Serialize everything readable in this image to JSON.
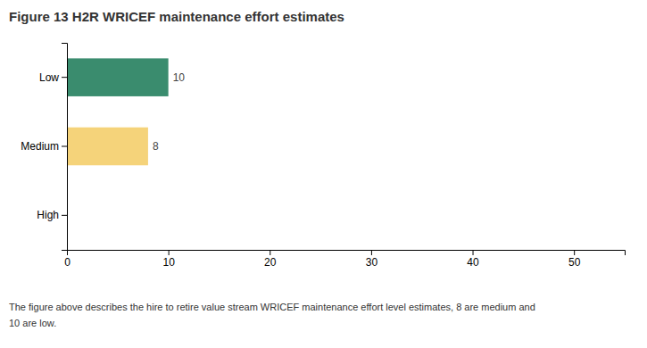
{
  "chart_data": {
    "type": "bar",
    "title": "Figure 13 H2R WRICEF maintenance effort estimates",
    "orientation": "horizontal",
    "categories": [
      "High",
      "Medium",
      "Low"
    ],
    "values": [
      0,
      8,
      10
    ],
    "value_labels": [
      null,
      "8",
      "10"
    ],
    "data_labels": true,
    "colors": [
      "#ffffff",
      "#F5D37A",
      "#3A8C6E"
    ],
    "xlim": [
      0,
      55
    ],
    "xticks": [
      0,
      10,
      20,
      30,
      40,
      50
    ],
    "grid": false,
    "caption": [
      "The figure above describes the hire to retire value stream WRICEF maintenance effort level estimates, 8 are medium and",
      "10 are low."
    ]
  }
}
